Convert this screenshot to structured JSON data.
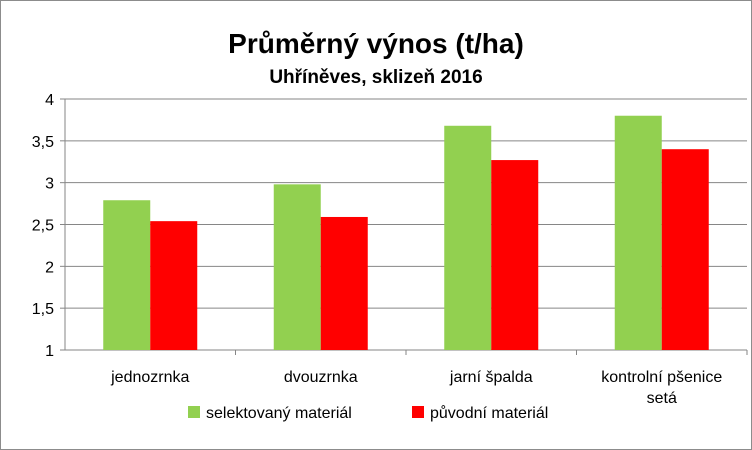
{
  "chart_data": {
    "type": "bar",
    "title": "Průměrný výnos (t/ha)",
    "subtitle": "Uhříněves, sklizeň 2016",
    "xlabel": "",
    "ylabel": "",
    "categories": [
      [
        "jednozrnka"
      ],
      [
        "dvouzrnka"
      ],
      [
        "jarní špalda"
      ],
      [
        "kontrolní pšenice",
        "setá"
      ]
    ],
    "series": [
      {
        "name": "selektovaný materiál",
        "color": "#92d050",
        "values": [
          2.79,
          2.98,
          3.68,
          3.8
        ]
      },
      {
        "name": "původní materiál",
        "color": "#ff0000",
        "values": [
          2.54,
          2.59,
          3.27,
          3.4
        ]
      }
    ],
    "ylim": [
      1,
      4
    ],
    "yticks": [
      "1",
      "1,5",
      "2",
      "2,5",
      "3",
      "3,5",
      "4"
    ],
    "ytick_values": [
      1,
      1.5,
      2,
      2.5,
      3,
      3.5,
      4
    ],
    "grid": true,
    "legend": "bottom"
  }
}
